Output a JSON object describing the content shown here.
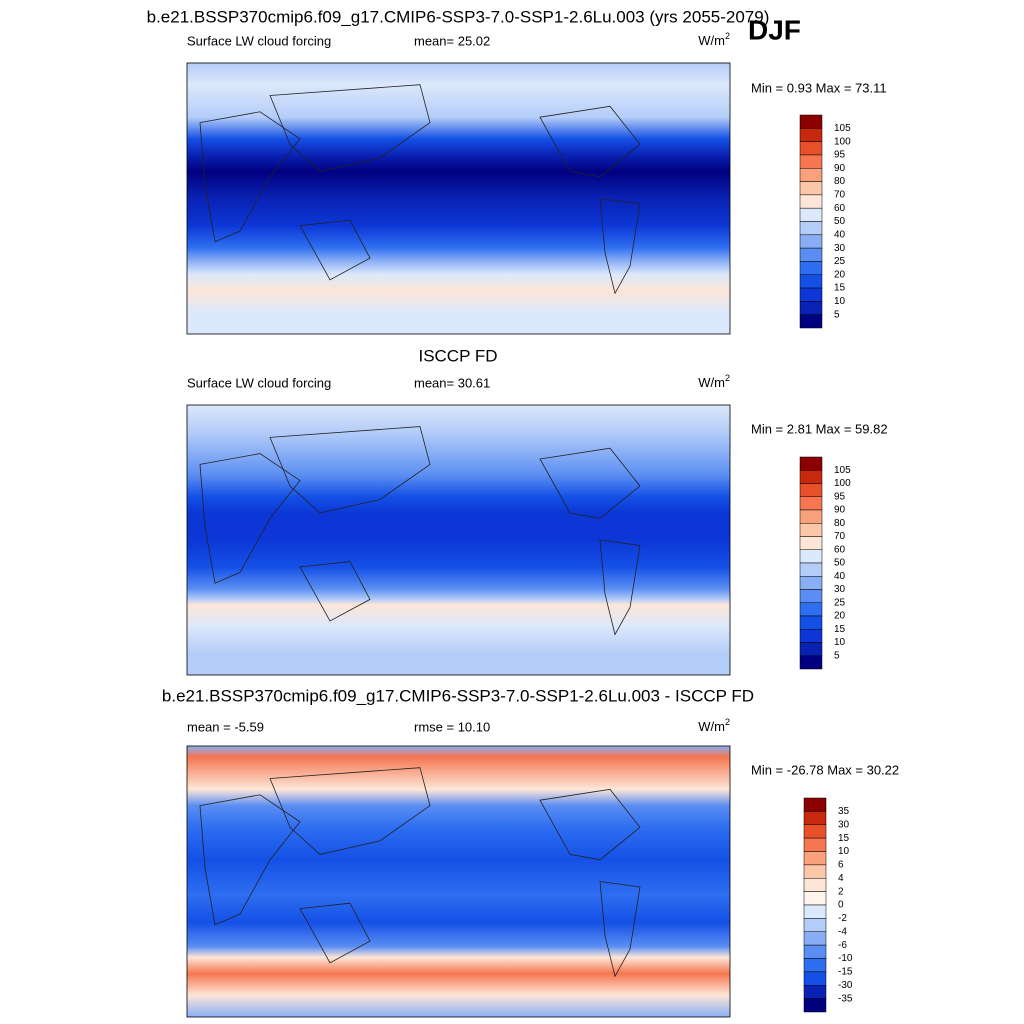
{
  "season": "DJF",
  "panels": [
    {
      "title": "b.e21.BSSP370cmip6.f09_g17.CMIP6-SSP3-7.0-SSP1-2.6Lu.003 (yrs 2055-2079)",
      "left_label": "Surface LW cloud forcing",
      "center_label": "mean=  25.02",
      "units": "W/m",
      "units_power": "2",
      "min_max": "Min =   0.93 Max =  73.11",
      "colorbar": {
        "labels": [
          "105",
          "100",
          "95",
          "90",
          "80",
          "70",
          "60",
          "50",
          "40",
          "30",
          "25",
          "20",
          "15",
          "10",
          "5"
        ],
        "colors": [
          "#8b0000",
          "#c8280e",
          "#e8502a",
          "#f57650",
          "#f9a07c",
          "#fcc6a8",
          "#fde6d8",
          "#dce8fb",
          "#b4cdf8",
          "#8aaef5",
          "#5b8ef2",
          "#2e6ef0",
          "#1450e6",
          "#0c37d6",
          "#0a22b4",
          "#000080"
        ]
      }
    },
    {
      "title": "ISCCP FD",
      "left_label": "Surface LW cloud forcing",
      "center_label": "mean=  30.61",
      "units": "W/m",
      "units_power": "2",
      "min_max": "Min =   2.81 Max =  59.82",
      "colorbar": {
        "labels": [
          "105",
          "100",
          "95",
          "90",
          "80",
          "70",
          "60",
          "50",
          "40",
          "30",
          "25",
          "20",
          "15",
          "10",
          "5"
        ],
        "colors": [
          "#8b0000",
          "#c8280e",
          "#e8502a",
          "#f57650",
          "#f9a07c",
          "#fcc6a8",
          "#fde6d8",
          "#dce8fb",
          "#b4cdf8",
          "#8aaef5",
          "#5b8ef2",
          "#2e6ef0",
          "#1450e6",
          "#0c37d6",
          "#0a22b4",
          "#000080"
        ]
      }
    },
    {
      "title": "b.e21.BSSP370cmip6.f09_g17.CMIP6-SSP3-7.0-SSP1-2.6Lu.003 - ISCCP FD",
      "left_label": "mean =  -5.59",
      "center_label": "rmse =  10.10",
      "units": "W/m",
      "units_power": "2",
      "min_max": "Min = -26.78 Max =  30.22",
      "colorbar": {
        "labels": [
          "35",
          "30",
          "15",
          "10",
          "6",
          "4",
          "2",
          "0",
          "-2",
          "-4",
          "-6",
          "-10",
          "-15",
          "-30",
          "-35"
        ],
        "colors": [
          "#8b0000",
          "#c8280e",
          "#e8502a",
          "#f57650",
          "#f9a07c",
          "#fcc6a8",
          "#fde6d8",
          "#fff5ee",
          "#dce8fb",
          "#b4cdf8",
          "#8aaef5",
          "#5b8ef2",
          "#2e6ef0",
          "#1450e6",
          "#0a22b4",
          "#000080"
        ]
      }
    }
  ]
}
